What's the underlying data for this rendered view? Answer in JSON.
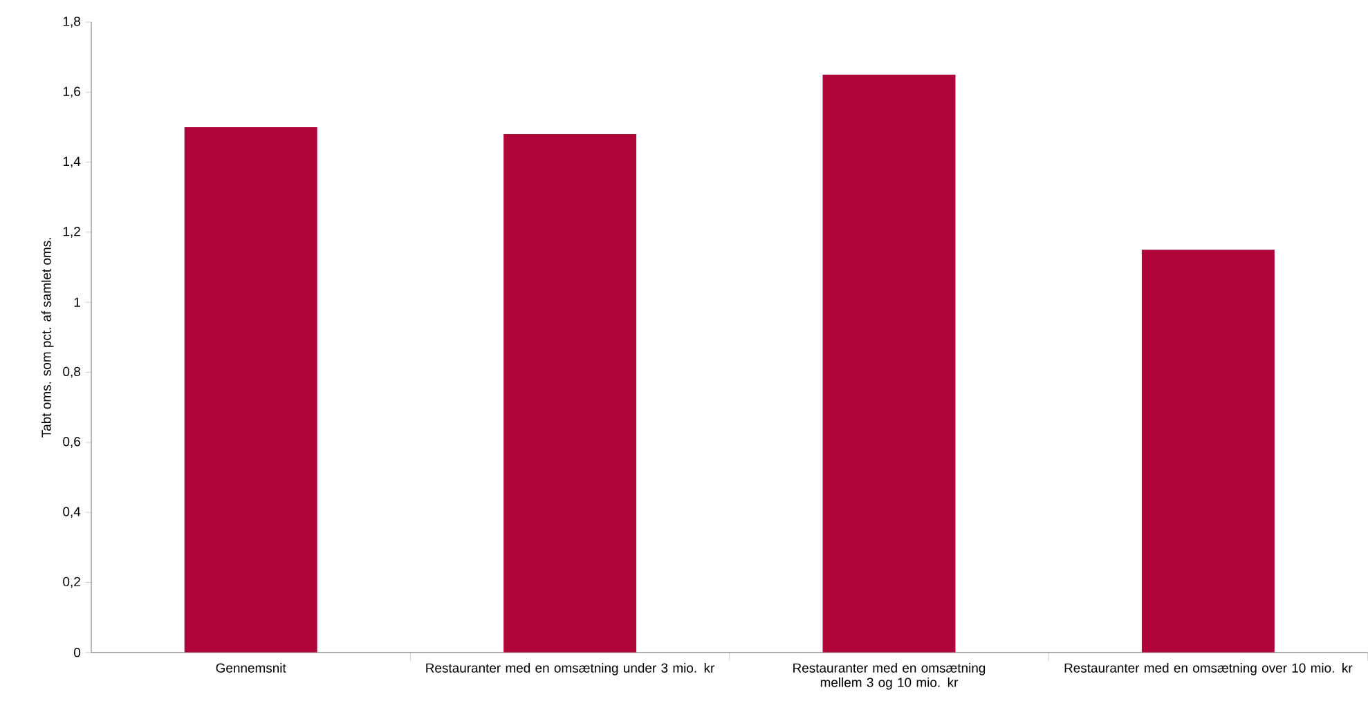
{
  "chart_data": {
    "type": "bar",
    "ylabel": "Tabt oms. som pct. af samlet oms.",
    "categories": [
      "Gennemsnit",
      "Restauranter med en omsætning under 3 mio. kr",
      "Restauranter med en omsætning mellem 3 og 10 mio. kr",
      "Restauranter med en omsætning over 10 mio. kr"
    ],
    "values": [
      1.5,
      1.48,
      1.65,
      1.15
    ],
    "color": "#b00538",
    "ylim": [
      0,
      1.8
    ],
    "yticks": [
      0,
      {
        "value": 0.2,
        "label": "0,2"
      },
      {
        "value": 0.4,
        "label": "0,4"
      },
      {
        "value": 0.6,
        "label": "0,6"
      },
      {
        "value": 0.8,
        "label": "0,8"
      },
      1,
      {
        "value": 1.2,
        "label": "1,2"
      },
      {
        "value": 1.4,
        "label": "1,4"
      },
      {
        "value": 1.6,
        "label": "1,6"
      },
      {
        "value": 1.8,
        "label": "1,8"
      }
    ]
  }
}
